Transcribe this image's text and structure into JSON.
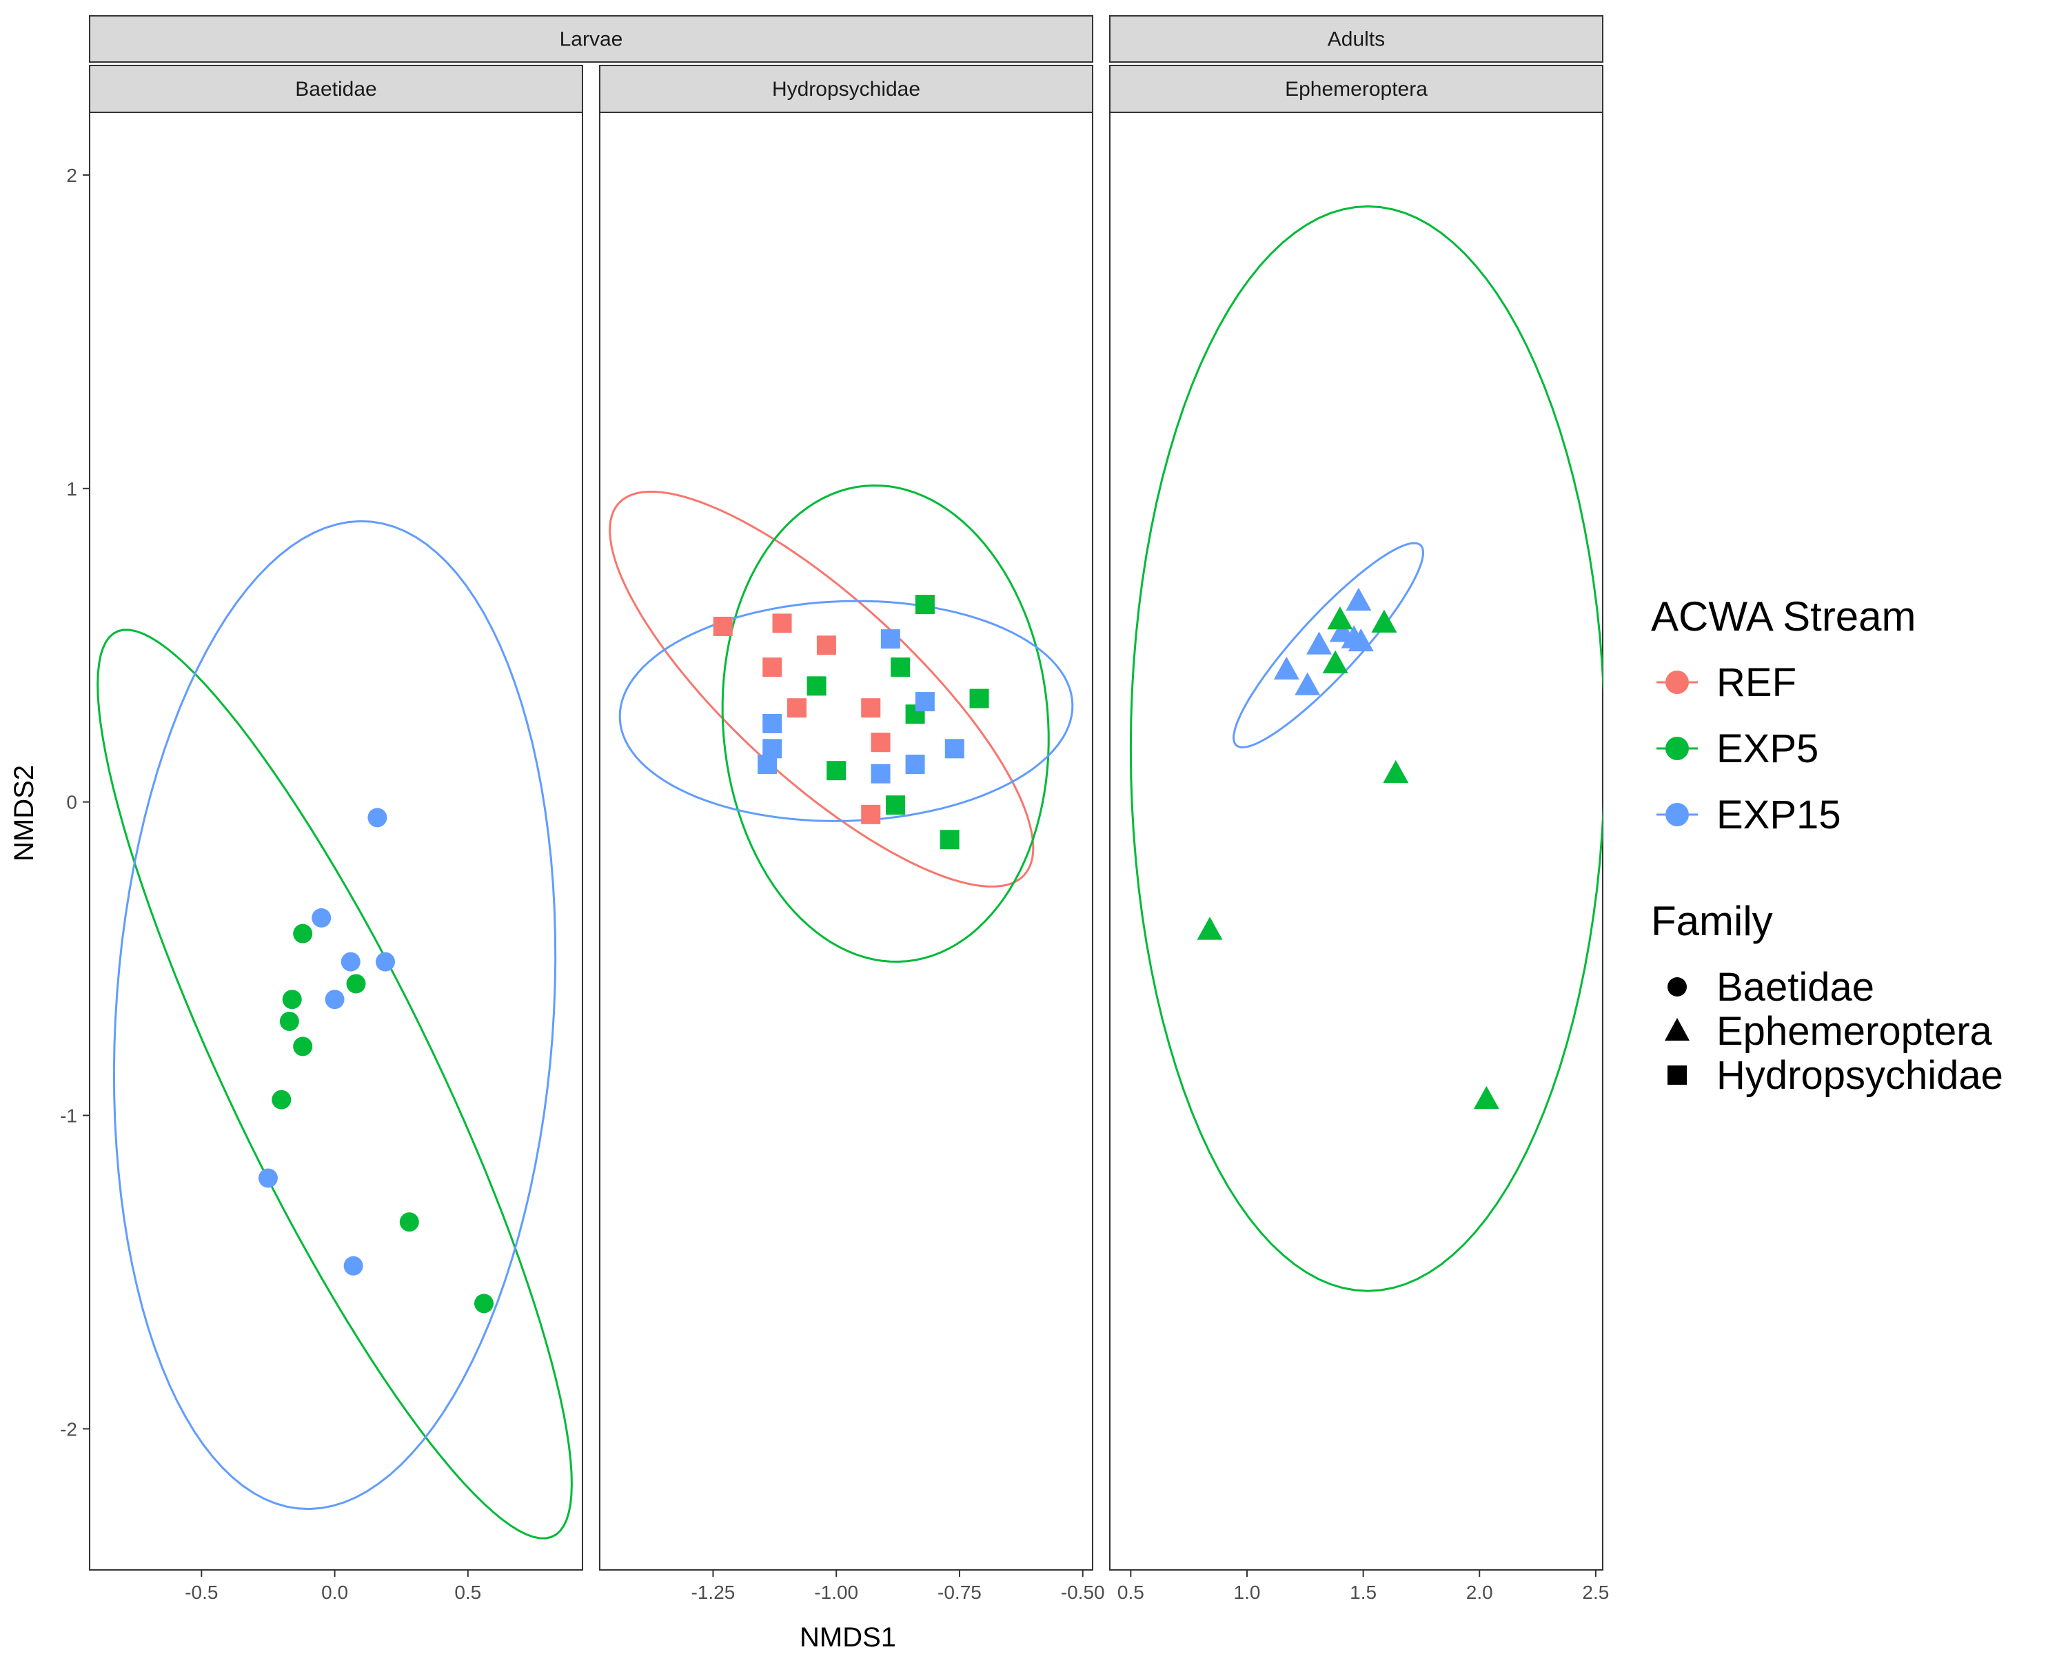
{
  "chart_data": {
    "type": "scatter",
    "subtype": "faceted scatter with confidence ellipses",
    "xlabel": "NMDS1",
    "ylabel": "NMDS2",
    "ylim": [
      -2.45,
      2.2
    ],
    "yticks": [
      2,
      1,
      0,
      -1,
      -2
    ],
    "grid": false,
    "top_strips": [
      {
        "label": "Larvae",
        "spans_panels": [
          0,
          1
        ]
      },
      {
        "label": "Adults",
        "spans_panels": [
          2
        ]
      }
    ],
    "legend": {
      "placement": "right",
      "color": {
        "title": "ACWA Stream",
        "entries": [
          {
            "name": "REF",
            "color": "#F8766D"
          },
          {
            "name": "EXP5",
            "color": "#00BA38"
          },
          {
            "name": "EXP15",
            "color": "#619CFF"
          }
        ]
      },
      "shape": {
        "title": "Family",
        "entries": [
          {
            "name": "Baetidae",
            "shape": "circle"
          },
          {
            "name": "Ephemeroptera",
            "shape": "triangle"
          },
          {
            "name": "Hydropsychidae",
            "shape": "square"
          }
        ]
      }
    },
    "panels": [
      {
        "group": "Larvae",
        "label": "Baetidae",
        "shape": "circle",
        "xlim": [
          -0.92,
          0.93
        ],
        "xticks": [
          -0.5,
          0.0,
          0.5
        ],
        "xtick_labels": [
          "-0.5",
          "0.0",
          "0.5"
        ],
        "points": [
          {
            "x": 0.16,
            "y": -0.05,
            "group": "EXP15"
          },
          {
            "x": -0.05,
            "y": -0.37,
            "group": "EXP15"
          },
          {
            "x": 0.06,
            "y": -0.51,
            "group": "EXP15"
          },
          {
            "x": 0.19,
            "y": -0.51,
            "group": "EXP15"
          },
          {
            "x": 0.0,
            "y": -0.63,
            "group": "EXP15"
          },
          {
            "x": -0.25,
            "y": -1.2,
            "group": "EXP15"
          },
          {
            "x": 0.07,
            "y": -1.48,
            "group": "EXP15"
          },
          {
            "x": -0.12,
            "y": -0.42,
            "group": "EXP5"
          },
          {
            "x": 0.08,
            "y": -0.58,
            "group": "EXP5"
          },
          {
            "x": -0.16,
            "y": -0.63,
            "group": "EXP5"
          },
          {
            "x": -0.17,
            "y": -0.7,
            "group": "EXP5"
          },
          {
            "x": -0.12,
            "y": -0.78,
            "group": "EXP5"
          },
          {
            "x": -0.2,
            "y": -0.95,
            "group": "EXP5"
          },
          {
            "x": 0.28,
            "y": -1.34,
            "group": "EXP5"
          },
          {
            "x": 0.56,
            "y": -1.6,
            "group": "EXP5"
          }
        ],
        "ellipses": [
          {
            "group": "EXP5",
            "cx": 0.0,
            "cy": -0.9,
            "a": 1.66,
            "b": 0.37,
            "angle_deg": -60
          },
          {
            "group": "EXP15",
            "cx": 0.0,
            "cy": -0.68,
            "a": 1.58,
            "b": 0.82,
            "angle_deg": 85
          }
        ]
      },
      {
        "group": "Larvae",
        "label": "Hydropsychidae",
        "shape": "square",
        "xlim": [
          -1.48,
          -0.48
        ],
        "xticks": [
          -1.25,
          -1.0,
          -0.75,
          -0.5
        ],
        "xtick_labels": [
          "-1.25",
          "-1.00",
          "-0.75",
          "-0.50"
        ],
        "points": [
          {
            "x": -1.23,
            "y": 0.56,
            "group": "REF"
          },
          {
            "x": -1.11,
            "y": 0.57,
            "group": "REF"
          },
          {
            "x": -1.02,
            "y": 0.5,
            "group": "REF"
          },
          {
            "x": -1.13,
            "y": 0.43,
            "group": "REF"
          },
          {
            "x": -1.08,
            "y": 0.3,
            "group": "REF"
          },
          {
            "x": -0.93,
            "y": 0.3,
            "group": "REF"
          },
          {
            "x": -0.91,
            "y": 0.19,
            "group": "REF"
          },
          {
            "x": -0.93,
            "y": -0.04,
            "group": "REF"
          },
          {
            "x": -0.82,
            "y": 0.63,
            "group": "EXP5"
          },
          {
            "x": -0.87,
            "y": 0.43,
            "group": "EXP5"
          },
          {
            "x": -1.04,
            "y": 0.37,
            "group": "EXP5"
          },
          {
            "x": -0.71,
            "y": 0.33,
            "group": "EXP5"
          },
          {
            "x": -0.84,
            "y": 0.28,
            "group": "EXP5"
          },
          {
            "x": -1.0,
            "y": 0.1,
            "group": "EXP5"
          },
          {
            "x": -0.88,
            "y": -0.01,
            "group": "EXP5"
          },
          {
            "x": -0.77,
            "y": -0.12,
            "group": "EXP5"
          },
          {
            "x": -0.89,
            "y": 0.52,
            "group": "EXP15"
          },
          {
            "x": -0.82,
            "y": 0.32,
            "group": "EXP15"
          },
          {
            "x": -1.13,
            "y": 0.25,
            "group": "EXP15"
          },
          {
            "x": -1.13,
            "y": 0.17,
            "group": "EXP15"
          },
          {
            "x": -0.76,
            "y": 0.17,
            "group": "EXP15"
          },
          {
            "x": -1.14,
            "y": 0.12,
            "group": "EXP15"
          },
          {
            "x": -0.84,
            "y": 0.12,
            "group": "EXP15"
          },
          {
            "x": -0.91,
            "y": 0.09,
            "group": "EXP15"
          }
        ],
        "ellipses": [
          {
            "group": "REF",
            "cx": -1.03,
            "cy": 0.36,
            "a": 0.73,
            "b": 0.22,
            "angle_deg": -58
          },
          {
            "group": "EXP5",
            "cx": -0.9,
            "cy": 0.25,
            "a": 0.76,
            "b": 0.33,
            "angle_deg": 92
          },
          {
            "group": "EXP15",
            "cx": -0.98,
            "cy": 0.29,
            "a": 0.46,
            "b": 0.35,
            "angle_deg": 5
          }
        ]
      },
      {
        "group": "Adults",
        "label": "Ephemeroptera",
        "shape": "triangle",
        "xlim": [
          0.41,
          2.53
        ],
        "xticks": [
          0.5,
          1.0,
          1.5,
          2.0,
          2.5
        ],
        "xtick_labels": [
          "0.5",
          "1.0",
          "1.5",
          "2.0",
          "2.5"
        ],
        "points": [
          {
            "x": 1.48,
            "y": 0.64,
            "group": "EXP15"
          },
          {
            "x": 1.41,
            "y": 0.54,
            "group": "EXP15"
          },
          {
            "x": 1.46,
            "y": 0.52,
            "group": "EXP15"
          },
          {
            "x": 1.31,
            "y": 0.5,
            "group": "EXP15"
          },
          {
            "x": 1.49,
            "y": 0.51,
            "group": "EXP15"
          },
          {
            "x": 1.17,
            "y": 0.42,
            "group": "EXP15"
          },
          {
            "x": 1.26,
            "y": 0.37,
            "group": "EXP15"
          },
          {
            "x": 1.4,
            "y": 0.58,
            "group": "EXP5"
          },
          {
            "x": 1.59,
            "y": 0.57,
            "group": "EXP5"
          },
          {
            "x": 1.38,
            "y": 0.44,
            "group": "EXP5"
          },
          {
            "x": 1.64,
            "y": 0.09,
            "group": "EXP5"
          },
          {
            "x": 0.84,
            "y": -0.41,
            "group": "EXP5"
          },
          {
            "x": 2.03,
            "y": -0.95,
            "group": "EXP5"
          }
        ],
        "ellipses": [
          {
            "group": "EXP5",
            "cx": 1.52,
            "cy": 0.17,
            "a": 1.73,
            "b": 1.02,
            "angle_deg": 90
          },
          {
            "group": "EXP15",
            "cx": 1.35,
            "cy": 0.5,
            "a": 0.51,
            "b": 0.11,
            "angle_deg": 38
          }
        ]
      }
    ]
  }
}
